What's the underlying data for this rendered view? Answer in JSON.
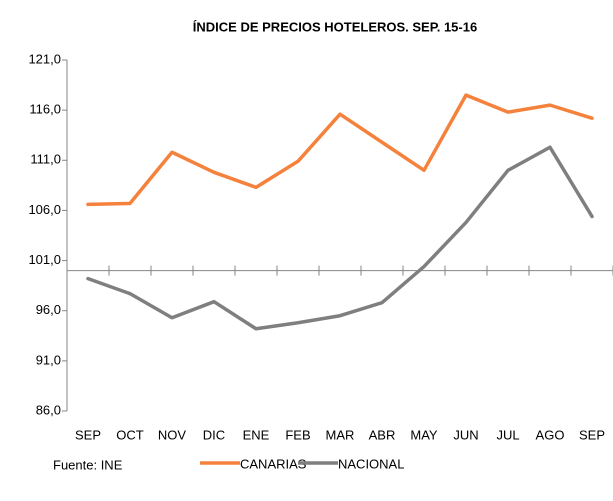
{
  "chart_data": {
    "type": "line",
    "title": "ÍNDICE DE PRECIOS HOTELEROS. SEP. 15-16",
    "categories": [
      "SEP",
      "OCT",
      "NOV",
      "DIC",
      "ENE",
      "FEB",
      "MAR",
      "ABR",
      "MAY",
      "JUN",
      "JUL",
      "AGO",
      "SEP"
    ],
    "series": [
      {
        "name": "CANARIAS",
        "color": "#f5823c",
        "values": [
          106.6,
          106.7,
          111.8,
          109.8,
          108.3,
          110.9,
          115.6,
          112.8,
          110.0,
          117.5,
          115.8,
          116.5,
          115.2
        ]
      },
      {
        "name": "NACIONAL",
        "color": "#7f7f7f",
        "values": [
          99.2,
          97.7,
          95.3,
          96.9,
          94.2,
          94.8,
          95.5,
          96.8,
          100.4,
          104.8,
          110.0,
          112.3,
          105.4
        ]
      }
    ],
    "ylim": [
      86,
      121
    ],
    "yticks": [
      {
        "value": 86,
        "label": "86,0"
      },
      {
        "value": 91,
        "label": "91,0"
      },
      {
        "value": 96,
        "label": "96,0"
      },
      {
        "value": 101,
        "label": "101,0"
      },
      {
        "value": 106,
        "label": "106,0"
      },
      {
        "value": 111,
        "label": "111,0"
      },
      {
        "value": 116,
        "label": "116,0"
      },
      {
        "value": 121,
        "label": "121,0"
      }
    ],
    "x_axis_crosses_at": 100,
    "legend": "bottom",
    "source": "Fuente: INE"
  }
}
